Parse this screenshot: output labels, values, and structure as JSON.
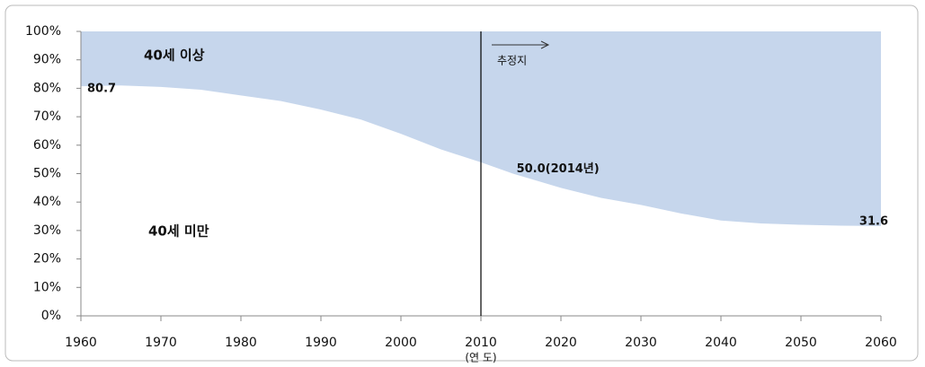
{
  "chart_data": {
    "type": "stacked_area",
    "x": [
      1960,
      1965,
      1970,
      1975,
      1980,
      1985,
      1990,
      1995,
      2000,
      2005,
      2010,
      2014,
      2020,
      2025,
      2030,
      2035,
      2040,
      2045,
      2050,
      2055,
      2060
    ],
    "series": [
      {
        "name": "40세 미만",
        "color": "#ffffff",
        "values": [
          80.7,
          81,
          80.5,
          79.5,
          77.5,
          75.5,
          72.5,
          69,
          64,
          58.5,
          54,
          50.0,
          45,
          41.5,
          39,
          36,
          33.5,
          32.5,
          32,
          31.7,
          31.6
        ],
        "value_labels": [
          "80.7",
          null,
          null,
          null,
          null,
          null,
          null,
          null,
          null,
          null,
          null,
          "50.0(2014년)",
          null,
          null,
          null,
          null,
          null,
          null,
          null,
          null,
          "31.6"
        ]
      },
      {
        "name": "40세 이상",
        "color": "#c6d6ec",
        "values": [
          19.3,
          19,
          19.5,
          20.5,
          22.5,
          24.5,
          27.5,
          31,
          36,
          41.5,
          46,
          50.0,
          55,
          58.5,
          61,
          64,
          66.5,
          67.5,
          68,
          68.3,
          68.4
        ]
      }
    ],
    "x_label": "(연 도)",
    "projection": {
      "x": 2010,
      "label": "추정지"
    },
    "xlim": [
      1960,
      2060
    ],
    "xticks": [
      1960,
      1970,
      1980,
      1990,
      2000,
      2010,
      2020,
      2030,
      2040,
      2050,
      2060
    ],
    "ylim": [
      0,
      100
    ],
    "yticks": [
      {
        "value": 0,
        "label": "0%"
      },
      {
        "value": 10,
        "label": "10%"
      },
      {
        "value": 20,
        "label": "20%"
      },
      {
        "value": 30,
        "label": "30%"
      },
      {
        "value": 40,
        "label": "40%"
      },
      {
        "value": 50,
        "label": "50%"
      },
      {
        "value": 60,
        "label": "60%"
      },
      {
        "value": 70,
        "label": "70%"
      },
      {
        "value": 80,
        "label": "80%"
      },
      {
        "value": 90,
        "label": "90%"
      },
      {
        "value": 100,
        "label": "100%"
      }
    ]
  }
}
